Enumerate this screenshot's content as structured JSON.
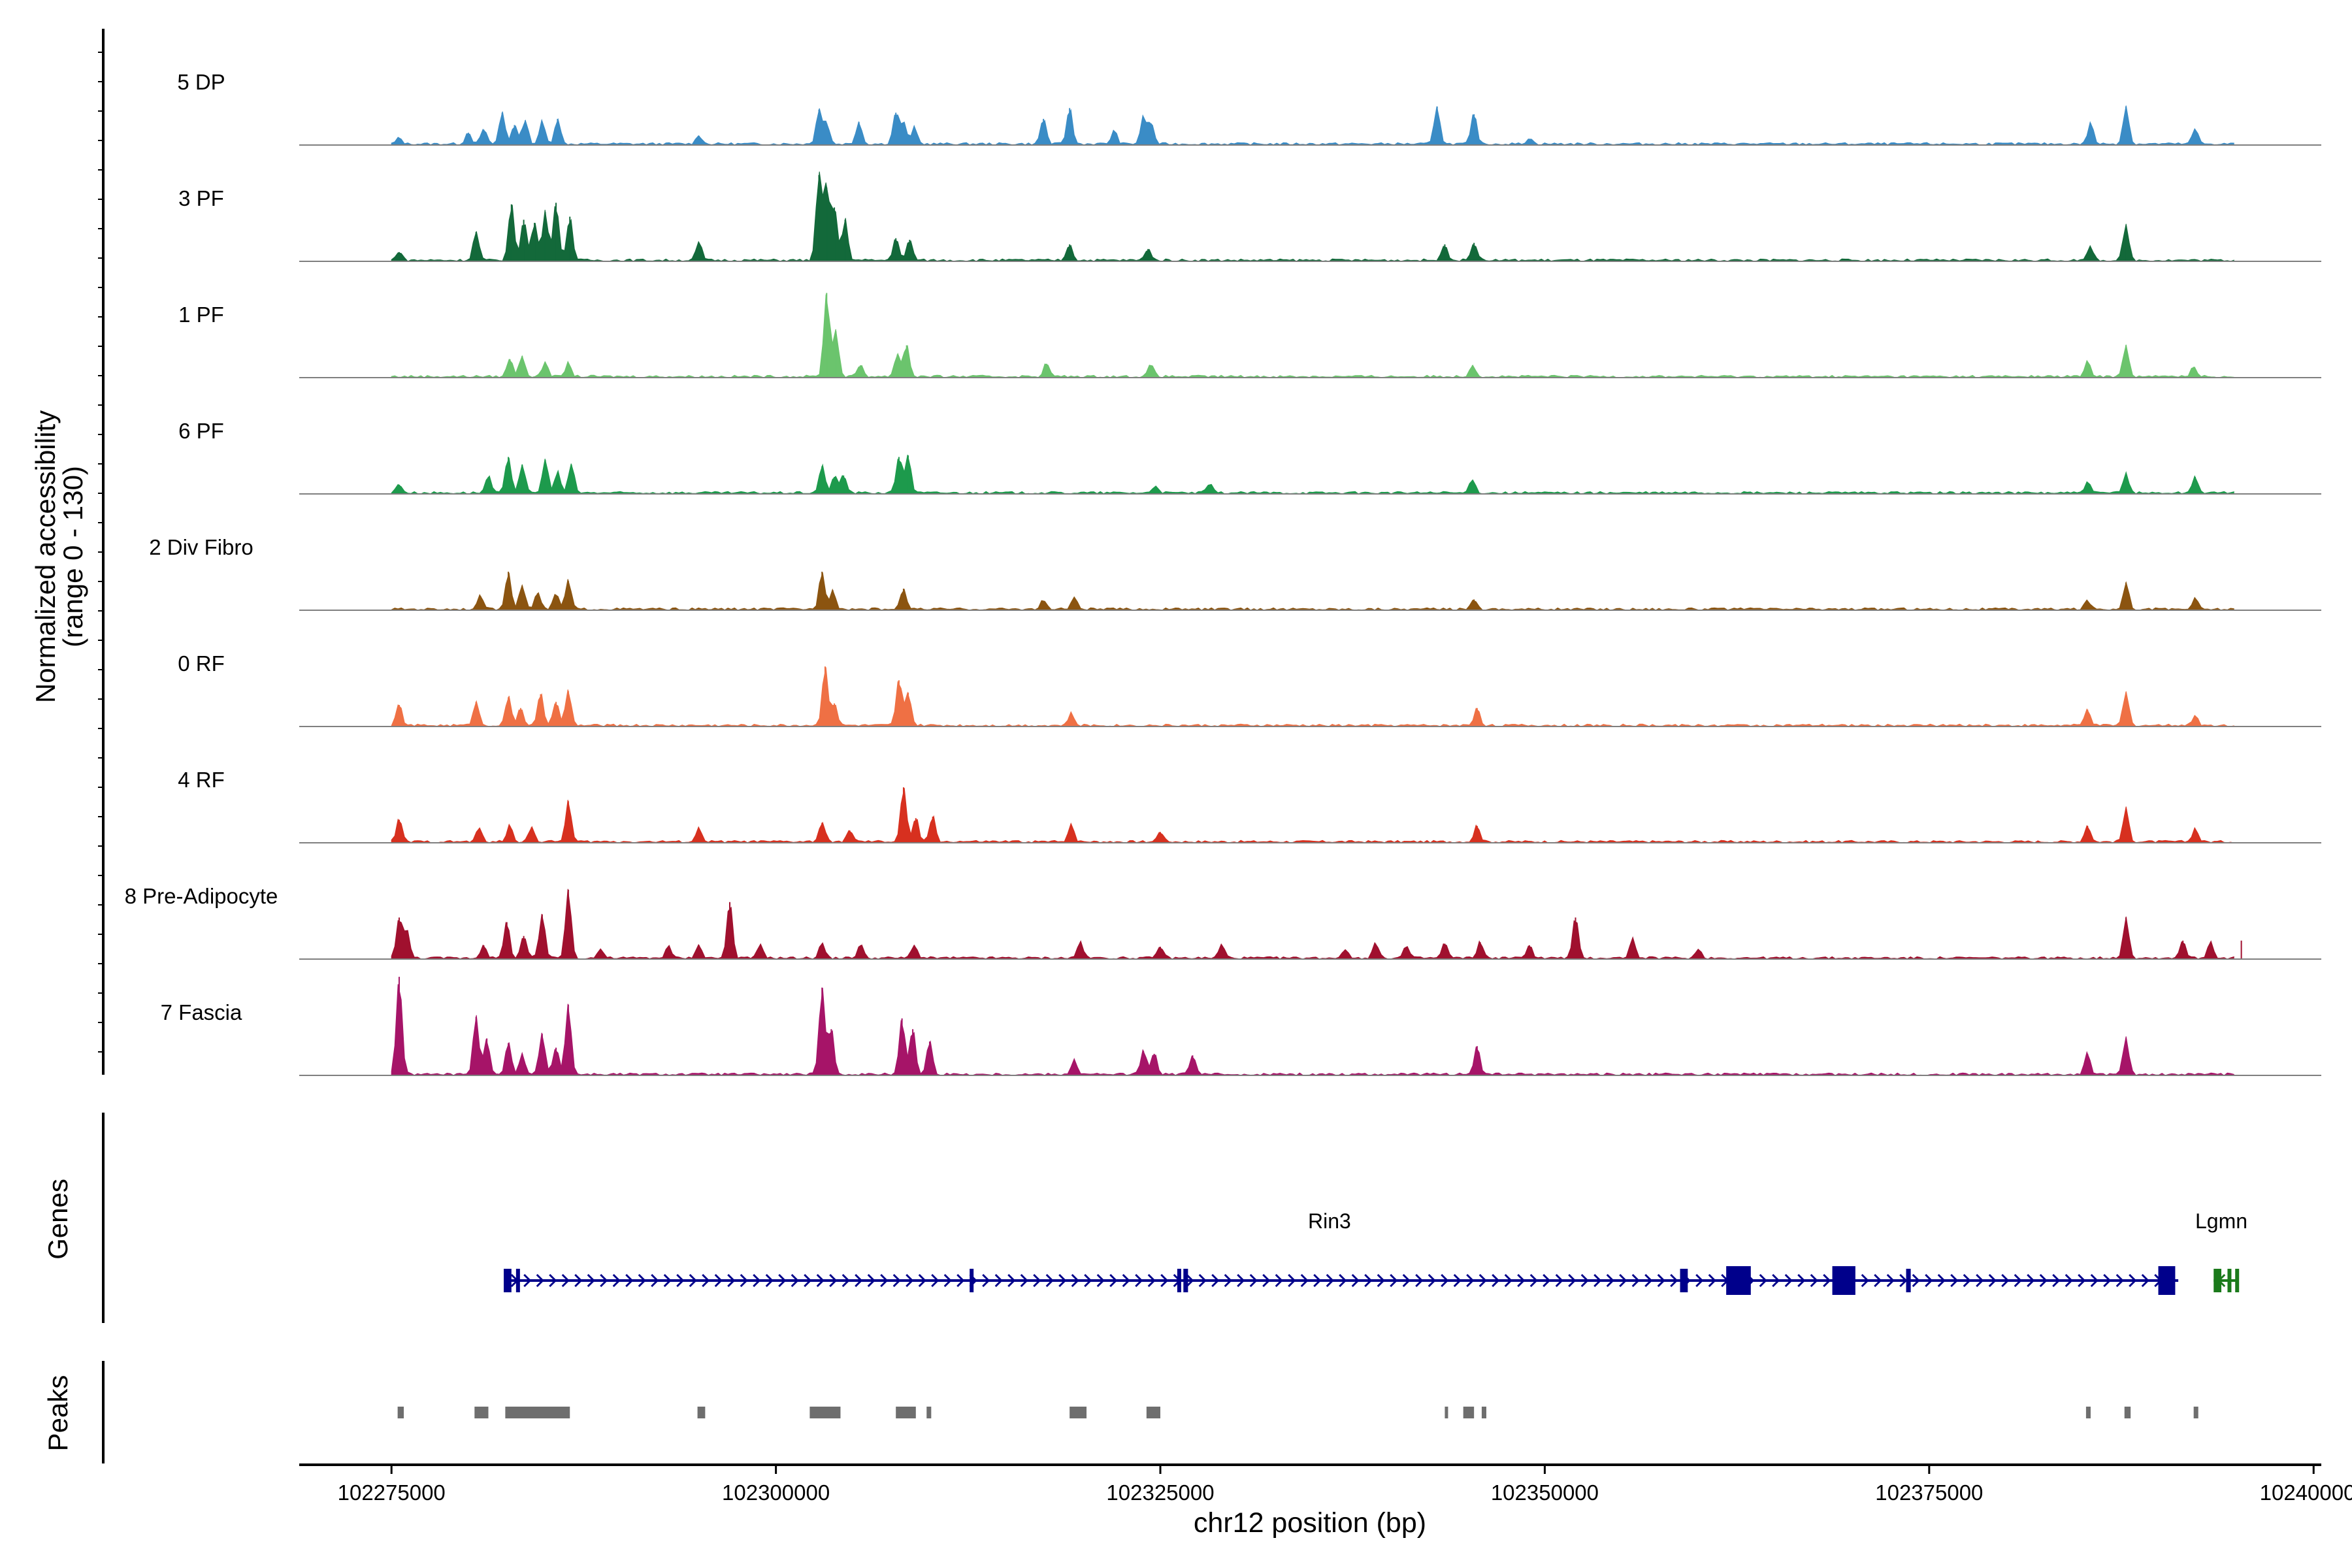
{
  "chart_data": {
    "type": "coverage",
    "y_axis_title": [
      "Normalized accessibility",
      "(range 0 - 130)"
    ],
    "y_range": [
      0,
      130
    ],
    "x_axis_title": "chr12 position (bp)",
    "xlim": [
      102269000,
      102400500
    ],
    "x_ticks": [
      102275000,
      102300000,
      102325000,
      102350000,
      102375000,
      102400000
    ],
    "x_tick_labels": [
      "102275000",
      "102300000",
      "102325000",
      "102350000",
      "102375000",
      "102400000"
    ],
    "tracks": [
      {
        "name": "5 DP",
        "color": "#3a8cc6",
        "peaks": [
          [
            102275500,
            4
          ],
          [
            102280000,
            8
          ],
          [
            102281000,
            10
          ],
          [
            102282200,
            21
          ],
          [
            102283000,
            13
          ],
          [
            102283700,
            16
          ],
          [
            102284800,
            15
          ],
          [
            102285800,
            17
          ],
          [
            102295000,
            6
          ],
          [
            102302800,
            23
          ],
          [
            102303300,
            14
          ],
          [
            102305400,
            15
          ],
          [
            102307800,
            21
          ],
          [
            102308300,
            14
          ],
          [
            102309000,
            11
          ],
          [
            102317400,
            17
          ],
          [
            102319100,
            24
          ],
          [
            102322000,
            9
          ],
          [
            102323900,
            18
          ],
          [
            102324400,
            14
          ],
          [
            102343000,
            25
          ],
          [
            102345400,
            20
          ],
          [
            102349000,
            4
          ],
          [
            102385500,
            14
          ],
          [
            102387800,
            25
          ],
          [
            102392300,
            10
          ]
        ]
      },
      {
        "name": "3 PF",
        "color": "#13693a",
        "peaks": [
          [
            102275500,
            6
          ],
          [
            102280500,
            19
          ],
          [
            102282800,
            37
          ],
          [
            102283600,
            27
          ],
          [
            102284300,
            25
          ],
          [
            102285000,
            32
          ],
          [
            102285700,
            38
          ],
          [
            102286600,
            29
          ],
          [
            102295000,
            12
          ],
          [
            102302800,
            56
          ],
          [
            102303300,
            48
          ],
          [
            102303800,
            35
          ],
          [
            102304500,
            27
          ],
          [
            102307800,
            15
          ],
          [
            102308700,
            14
          ],
          [
            102319100,
            11
          ],
          [
            102324200,
            8
          ],
          [
            102343500,
            11
          ],
          [
            102345400,
            12
          ],
          [
            102385500,
            9
          ],
          [
            102387800,
            23
          ]
        ]
      },
      {
        "name": "1 PF",
        "color": "#6bc46d",
        "peaks": [
          [
            102282700,
            12
          ],
          [
            102283500,
            14
          ],
          [
            102285000,
            10
          ],
          [
            102286500,
            9
          ],
          [
            102303300,
            55
          ],
          [
            102303900,
            30
          ],
          [
            102305500,
            8
          ],
          [
            102307900,
            15
          ],
          [
            102308500,
            21
          ],
          [
            102317600,
            9
          ],
          [
            102324400,
            8
          ],
          [
            102345300,
            8
          ],
          [
            102385300,
            10
          ],
          [
            102387800,
            21
          ],
          [
            102392200,
            7
          ]
        ]
      },
      {
        "name": "6 PF",
        "color": "#1d9a4c",
        "peaks": [
          [
            102275500,
            6
          ],
          [
            102281300,
            11
          ],
          [
            102282600,
            24
          ],
          [
            102283500,
            19
          ],
          [
            102285000,
            22
          ],
          [
            102285800,
            14
          ],
          [
            102286700,
            19
          ],
          [
            102303000,
            18
          ],
          [
            102303800,
            11
          ],
          [
            102304400,
            12
          ],
          [
            102308000,
            24
          ],
          [
            102308600,
            25
          ],
          [
            102324700,
            5
          ],
          [
            102328200,
            6
          ],
          [
            102345300,
            9
          ],
          [
            102385300,
            7
          ],
          [
            102387800,
            13
          ],
          [
            102392300,
            11
          ]
        ]
      },
      {
        "name": "2 Div Fibro",
        "color": "#8b5410",
        "peaks": [
          [
            102280800,
            9
          ],
          [
            102282600,
            25
          ],
          [
            102283500,
            16
          ],
          [
            102284500,
            11
          ],
          [
            102285700,
            10
          ],
          [
            102286500,
            19
          ],
          [
            102303000,
            25
          ],
          [
            102303700,
            13
          ],
          [
            102308300,
            14
          ],
          [
            102317400,
            6
          ],
          [
            102319400,
            8
          ],
          [
            102345400,
            7
          ],
          [
            102385300,
            6
          ],
          [
            102387800,
            18
          ],
          [
            102392300,
            7
          ]
        ]
      },
      {
        "name": "0 RF",
        "color": "#ef7044",
        "peaks": [
          [
            102275500,
            14
          ],
          [
            102280500,
            16
          ],
          [
            102282600,
            19
          ],
          [
            102283400,
            12
          ],
          [
            102284700,
            21
          ],
          [
            102285700,
            16
          ],
          [
            102286500,
            23
          ],
          [
            102303200,
            39
          ],
          [
            102303800,
            15
          ],
          [
            102308000,
            30
          ],
          [
            102308600,
            22
          ],
          [
            102319200,
            8
          ],
          [
            102345600,
            12
          ],
          [
            102385300,
            11
          ],
          [
            102387800,
            22
          ],
          [
            102392300,
            7
          ]
        ]
      },
      {
        "name": "4 RF",
        "color": "#d7301f",
        "peaks": [
          [
            102275500,
            15
          ],
          [
            102280700,
            9
          ],
          [
            102282700,
            11
          ],
          [
            102284100,
            10
          ],
          [
            102286500,
            27
          ],
          [
            102295000,
            9
          ],
          [
            102303000,
            13
          ],
          [
            102304800,
            8
          ],
          [
            102308300,
            36
          ],
          [
            102309100,
            16
          ],
          [
            102310200,
            17
          ],
          [
            102319200,
            12
          ],
          [
            102325000,
            7
          ],
          [
            102345600,
            11
          ],
          [
            102385300,
            11
          ],
          [
            102387800,
            22
          ],
          [
            102392300,
            9
          ]
        ]
      },
      {
        "name": "8 Pre-Adipocyte",
        "color": "#a0102e",
        "peaks": [
          [
            102275500,
            27
          ],
          [
            102276000,
            18
          ],
          [
            102281000,
            9
          ],
          [
            102282500,
            24
          ],
          [
            102283600,
            15
          ],
          [
            102284800,
            29
          ],
          [
            102286500,
            45
          ],
          [
            102288600,
            6
          ],
          [
            102293000,
            8
          ],
          [
            102295000,
            9
          ],
          [
            102297000,
            37
          ],
          [
            102299000,
            9
          ],
          [
            102303000,
            10
          ],
          [
            102305500,
            9
          ],
          [
            102309000,
            9
          ],
          [
            102319800,
            11
          ],
          [
            102325000,
            8
          ],
          [
            102329000,
            9
          ],
          [
            102337000,
            6
          ],
          [
            102339000,
            10
          ],
          [
            102341000,
            8
          ],
          [
            102343500,
            10
          ],
          [
            102345800,
            11
          ],
          [
            102349000,
            9
          ],
          [
            102352000,
            27
          ],
          [
            102355700,
            13
          ],
          [
            102360000,
            6
          ],
          [
            102387800,
            27
          ],
          [
            102391500,
            12
          ],
          [
            102393300,
            11
          ],
          [
            102395300,
            12
          ]
        ]
      },
      {
        "name": "7 Fascia",
        "color": "#a61468",
        "peaks": [
          [
            102275500,
            64
          ],
          [
            102280500,
            38
          ],
          [
            102281200,
            24
          ],
          [
            102282600,
            21
          ],
          [
            102283500,
            14
          ],
          [
            102284800,
            27
          ],
          [
            102285700,
            18
          ],
          [
            102286500,
            46
          ],
          [
            102303000,
            57
          ],
          [
            102303600,
            30
          ],
          [
            102308200,
            37
          ],
          [
            102308900,
            30
          ],
          [
            102310000,
            22
          ],
          [
            102319400,
            10
          ],
          [
            102323900,
            16
          ],
          [
            102324600,
            14
          ],
          [
            102327100,
            13
          ],
          [
            102345600,
            19
          ],
          [
            102385300,
            14
          ],
          [
            102387800,
            24
          ]
        ]
      }
    ],
    "genes_title": "Genes",
    "genes": [
      {
        "name": "Rin3",
        "strand": "+",
        "color": "#00008b",
        "start": 102282500,
        "end": 102391200,
        "label_position": 102336000,
        "exons": [
          [
            102282300,
            102282800
          ],
          [
            102283100,
            102283300
          ],
          [
            102312600,
            102312800
          ],
          [
            102326100,
            102326300
          ],
          [
            102326500,
            102326800
          ],
          [
            102358800,
            102359300
          ],
          [
            102361800,
            102363400
          ],
          [
            102368700,
            102370200
          ],
          [
            102373500,
            102373800
          ],
          [
            102389900,
            102391000
          ]
        ]
      },
      {
        "name": "Lgmn",
        "strand": "-",
        "color": "#1b7a1b",
        "start": 102393500,
        "end": 102395000,
        "label_position": 102394000,
        "exons": [
          [
            102393500,
            102394000
          ],
          [
            102394400,
            102394600
          ],
          [
            102394900,
            102395000
          ]
        ]
      }
    ],
    "peaks_title": "Peaks",
    "peak_regions": [
      [
        102275400,
        102275800
      ],
      [
        102280400,
        102281300
      ],
      [
        102282400,
        102286600
      ],
      [
        102294900,
        102295400
      ],
      [
        102302200,
        102304200
      ],
      [
        102307800,
        102309100
      ],
      [
        102309800,
        102310100
      ],
      [
        102319100,
        102320200
      ],
      [
        102324100,
        102325000
      ],
      [
        102343500,
        102343600
      ],
      [
        102344700,
        102345400
      ],
      [
        102345900,
        102346200
      ],
      [
        102385200,
        102385500
      ],
      [
        102387700,
        102388100
      ],
      [
        102392200,
        102392500
      ]
    ]
  }
}
